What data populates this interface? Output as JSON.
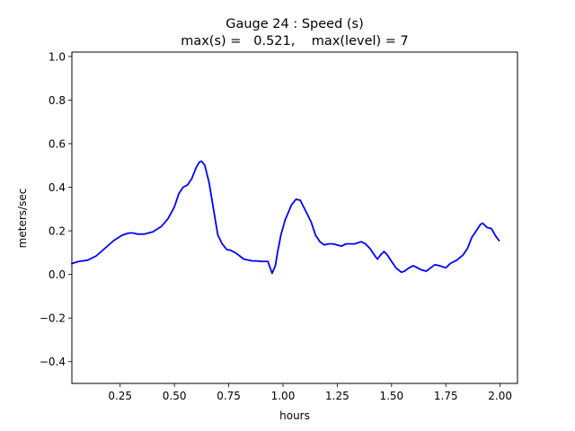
{
  "chart_data": {
    "type": "line",
    "title": "Gauge 24 : Speed (s)",
    "subtitle": "max(s) =   0.521,    max(level) = 7",
    "xlabel": "hours",
    "ylabel": "meters/sec",
    "xlim": [
      0.0278,
      2.08
    ],
    "ylim": [
      -0.5,
      1.02
    ],
    "xticks": [
      0.25,
      0.5,
      0.75,
      1.0,
      1.25,
      1.5,
      1.75,
      2.0
    ],
    "xtick_labels": [
      "0.25",
      "0.50",
      "0.75",
      "1.00",
      "1.25",
      "1.50",
      "1.75",
      "2.00"
    ],
    "yticks": [
      -0.4,
      -0.2,
      0.0,
      0.2,
      0.4,
      0.6,
      0.8,
      1.0
    ],
    "ytick_labels": [
      "−0.4",
      "−0.2",
      "0.0",
      "0.2",
      "0.4",
      "0.6",
      "0.8",
      "1.0"
    ],
    "grid": false,
    "series": [
      {
        "color": "#0000ff",
        "x": [
          0.028,
          0.06,
          0.1,
          0.14,
          0.18,
          0.22,
          0.26,
          0.29,
          0.31,
          0.33,
          0.36,
          0.4,
          0.44,
          0.47,
          0.5,
          0.52,
          0.54,
          0.56,
          0.58,
          0.6,
          0.615,
          0.625,
          0.64,
          0.66,
          0.68,
          0.7,
          0.72,
          0.74,
          0.76,
          0.78,
          0.82,
          0.86,
          0.88,
          0.9,
          0.93,
          0.95,
          0.965,
          0.975,
          0.99,
          1.01,
          1.04,
          1.06,
          1.08,
          1.095,
          1.11,
          1.13,
          1.15,
          1.17,
          1.19,
          1.21,
          1.23,
          1.27,
          1.29,
          1.31,
          1.33,
          1.36,
          1.38,
          1.4,
          1.42,
          1.435,
          1.45,
          1.465,
          1.48,
          1.5,
          1.52,
          1.545,
          1.56,
          1.58,
          1.6,
          1.62,
          1.64,
          1.66,
          1.68,
          1.7,
          1.72,
          1.75,
          1.77,
          1.8,
          1.83,
          1.85,
          1.87,
          1.89,
          1.91,
          1.92,
          1.94,
          1.96,
          1.98,
          1.995
        ],
        "y": [
          0.05,
          0.06,
          0.065,
          0.085,
          0.12,
          0.155,
          0.18,
          0.19,
          0.19,
          0.185,
          0.185,
          0.195,
          0.22,
          0.255,
          0.31,
          0.37,
          0.4,
          0.41,
          0.44,
          0.49,
          0.515,
          0.52,
          0.5,
          0.42,
          0.3,
          0.18,
          0.14,
          0.115,
          0.11,
          0.1,
          0.07,
          0.062,
          0.062,
          0.06,
          0.06,
          0.005,
          0.04,
          0.1,
          0.18,
          0.25,
          0.32,
          0.345,
          0.34,
          0.31,
          0.28,
          0.24,
          0.18,
          0.15,
          0.135,
          0.14,
          0.14,
          0.13,
          0.14,
          0.14,
          0.14,
          0.15,
          0.14,
          0.12,
          0.09,
          0.07,
          0.09,
          0.105,
          0.09,
          0.06,
          0.03,
          0.01,
          0.015,
          0.03,
          0.04,
          0.03,
          0.02,
          0.015,
          0.03,
          0.045,
          0.04,
          0.03,
          0.05,
          0.065,
          0.09,
          0.12,
          0.17,
          0.2,
          0.23,
          0.235,
          0.215,
          0.21,
          0.175,
          0.155
        ]
      }
    ]
  }
}
